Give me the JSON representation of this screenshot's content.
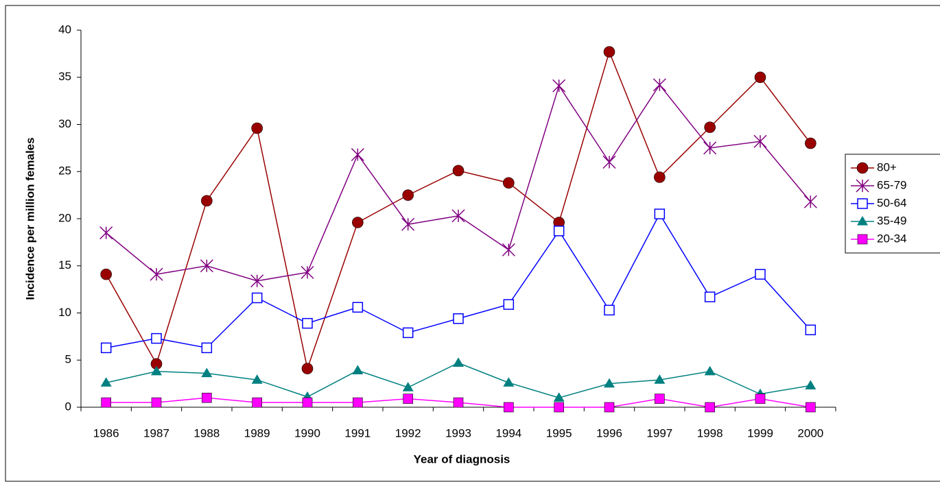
{
  "chart_data": {
    "type": "line",
    "xlabel": "Year of diagnosis",
    "ylabel": "Incidence per million females",
    "categories": [
      "1986",
      "1987",
      "1988",
      "1989",
      "1990",
      "1991",
      "1992",
      "1993",
      "1994",
      "1995",
      "1996",
      "1997",
      "1998",
      "1999",
      "2000"
    ],
    "series": [
      {
        "name": "80+",
        "color": "#990000",
        "marker": "circle",
        "values": [
          14.1,
          4.6,
          21.9,
          29.6,
          4.1,
          19.6,
          22.5,
          25.1,
          23.8,
          19.6,
          37.7,
          24.4,
          29.7,
          35.0,
          28.0
        ]
      },
      {
        "name": "65-79",
        "color": "#800080",
        "marker": "star",
        "values": [
          18.5,
          14.1,
          15.0,
          13.4,
          14.3,
          26.8,
          19.4,
          20.3,
          16.7,
          34.1,
          26.0,
          34.2,
          27.5,
          28.2,
          21.8
        ]
      },
      {
        "name": "50-64",
        "color": "#0000ff",
        "marker": "open-square",
        "values": [
          6.3,
          7.3,
          6.3,
          11.6,
          8.9,
          10.6,
          7.9,
          9.4,
          10.9,
          18.7,
          10.3,
          20.5,
          11.7,
          14.1,
          8.2
        ]
      },
      {
        "name": "35-49",
        "color": "#008080",
        "marker": "triangle",
        "values": [
          2.6,
          3.8,
          3.6,
          2.9,
          1.1,
          3.9,
          2.1,
          4.7,
          2.6,
          1.0,
          2.5,
          2.9,
          3.8,
          1.4,
          2.3
        ]
      },
      {
        "name": "20-34",
        "color": "#ff00ff",
        "marker": "square",
        "values": [
          0.5,
          0.5,
          1.0,
          0.5,
          0.5,
          0.5,
          0.9,
          0.5,
          0,
          0,
          0,
          0.9,
          0,
          0.9,
          0
        ]
      }
    ],
    "ylim": [
      0,
      40
    ],
    "yticks": [
      0,
      5,
      10,
      15,
      20,
      25,
      30,
      35,
      40
    ],
    "grid": false,
    "legend": "right"
  }
}
